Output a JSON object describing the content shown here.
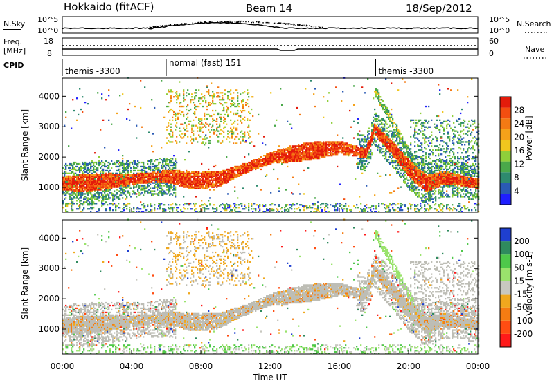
{
  "header": {
    "station": "Hokkaido (fitACF)",
    "beam": "Beam 14",
    "date": "18/Sep/2012"
  },
  "top_panels": {
    "nsky_label": "N.Sky",
    "nsky_ticks": [
      "10^5",
      "10^0"
    ],
    "nsearch_label": "N.Search",
    "nsearch_ticks": [
      "10^5",
      "10^0"
    ],
    "freq_label": "Freq.",
    "freq_unit": "[MHz]",
    "freq_ticks": [
      "18",
      "8"
    ],
    "nave_label": "Nave",
    "nave_ticks": [
      "60",
      "0"
    ],
    "cpid_label": "CPID"
  },
  "cpid_segments": [
    {
      "label": "themis -3300",
      "start_hour": 0.0
    },
    {
      "label": "normal (fast) 151",
      "start_hour": 6.0
    },
    {
      "label": "themis -3300",
      "start_hour": 18.1
    }
  ],
  "colors": {
    "power_scale": [
      "#1f1fff",
      "#2a5ab4",
      "#2e8a6e",
      "#4aa84a",
      "#8fcf3a",
      "#f0c61e",
      "#f5a21a",
      "#f47a14",
      "#f34e10",
      "#e31b0b"
    ],
    "velocity_scale": [
      "#ff1a1a",
      "#ff4d12",
      "#f57c12",
      "#f0a81e",
      "#c8c8c0",
      "#9ae36c",
      "#4ec84a",
      "#2f8a5e",
      "#1f3fd0"
    ],
    "ground_scatter": "#bdbdb5"
  },
  "chart_data": [
    {
      "type": "heatmap",
      "name_on_chart": "Power",
      "xlabel": "Time UT",
      "ylabel": "Slant Range [km]",
      "colorbar_label": "Power [dB]",
      "colorbar_ticks": [
        "4",
        "8",
        "12",
        "16",
        "20",
        "24",
        "28"
      ],
      "xlim_hours": [
        0,
        24
      ],
      "ylim_km": [
        180,
        4600
      ],
      "y_ticks": [
        "1000",
        "2000",
        "3000",
        "4000"
      ],
      "x_ticks": [
        "00:00",
        "04:00",
        "08:00",
        "12:00",
        "16:00",
        "20:00",
        "00:00"
      ],
      "band_ridge_km": [
        {
          "h": 0,
          "km": 1100
        },
        {
          "h": 2,
          "km": 1150
        },
        {
          "h": 4,
          "km": 1250
        },
        {
          "h": 6,
          "km": 1350
        },
        {
          "h": 7.5,
          "km": 1200
        },
        {
          "h": 9,
          "km": 1250
        },
        {
          "h": 10.5,
          "km": 1600
        },
        {
          "h": 12,
          "km": 1950
        },
        {
          "h": 14,
          "km": 2150
        },
        {
          "h": 16,
          "km": 2300
        },
        {
          "h": 17.5,
          "km": 2100
        },
        {
          "h": 18,
          "km": 2900
        },
        {
          "h": 19,
          "km": 2300
        },
        {
          "h": 20,
          "km": 1600
        },
        {
          "h": 21,
          "km": 1100
        },
        {
          "h": 22,
          "km": 1300
        },
        {
          "h": 24,
          "km": 1100
        }
      ]
    },
    {
      "type": "heatmap",
      "name_on_chart": "Velocity",
      "xlabel": "Time UT",
      "ylabel": "Slant Range [km]",
      "colorbar_label": "Velocity [m s-1]",
      "colorbar_ticks": [
        "-200",
        "-100",
        "-50",
        "-15",
        "15",
        "50",
        "100",
        "200"
      ],
      "xlim_hours": [
        0,
        24
      ],
      "ylim_km": [
        180,
        4600
      ],
      "y_ticks": [
        "1000",
        "2000",
        "3000",
        "4000"
      ],
      "x_ticks": [
        "00:00",
        "04:00",
        "08:00",
        "12:00",
        "16:00",
        "20:00",
        "00:00"
      ]
    }
  ]
}
